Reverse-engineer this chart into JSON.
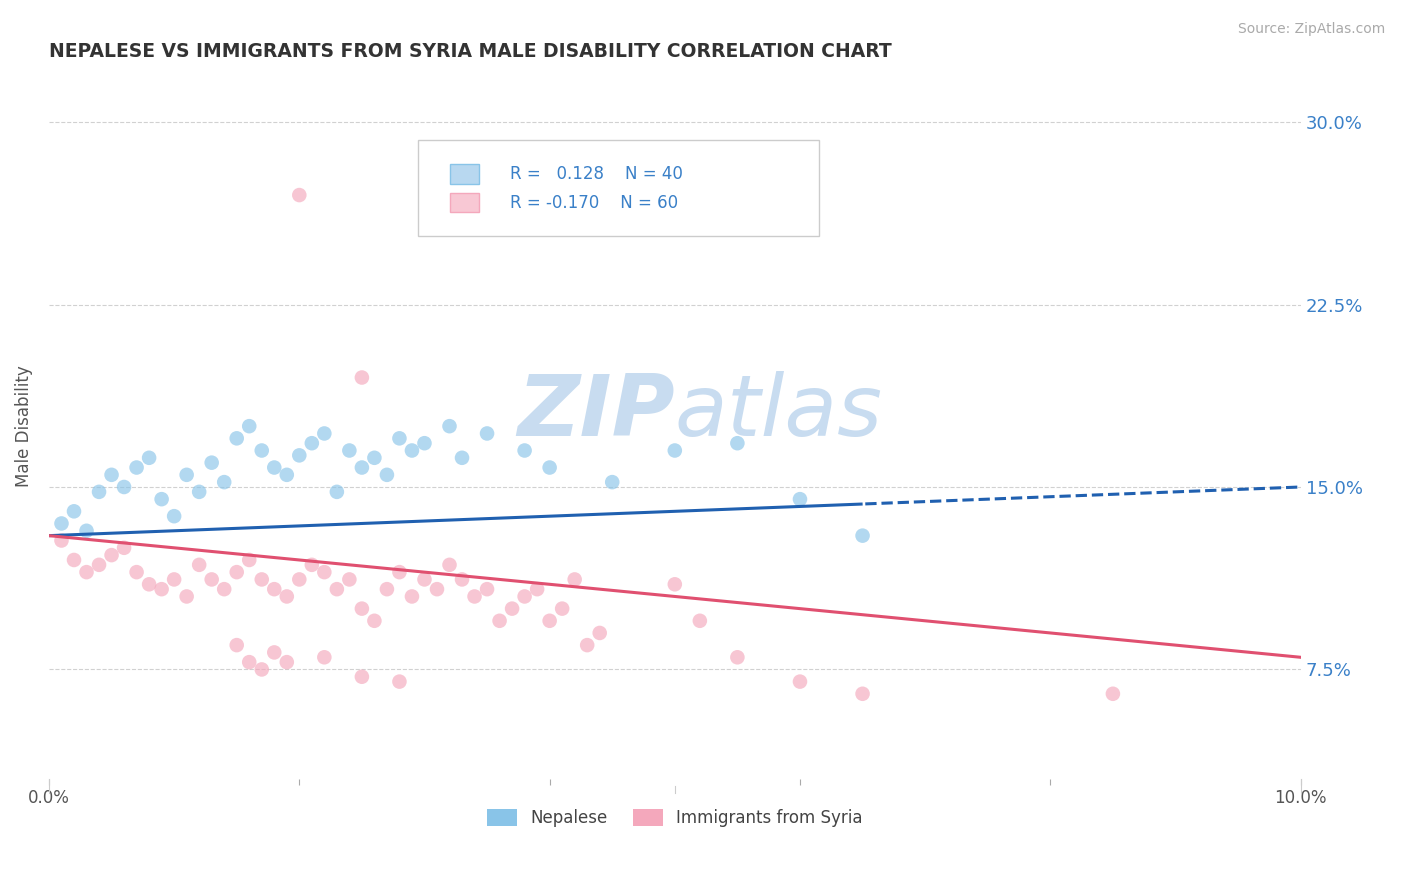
{
  "title": "NEPALESE VS IMMIGRANTS FROM SYRIA MALE DISABILITY CORRELATION CHART",
  "source": "Source: ZipAtlas.com",
  "ylabel": "Male Disability",
  "x_min": 0.0,
  "x_max": 0.1,
  "y_min": 0.03,
  "y_max": 0.32,
  "x_ticks": [
    0.0,
    0.02,
    0.04,
    0.06,
    0.08,
    0.1
  ],
  "x_tick_labels": [
    "0.0%",
    "",
    "",
    "",
    "",
    "10.0%"
  ],
  "y_ticks": [
    0.075,
    0.15,
    0.225,
    0.3
  ],
  "y_tick_labels": [
    "7.5%",
    "15.0%",
    "22.5%",
    "30.0%"
  ],
  "r_nepalese": 0.128,
  "n_nepalese": 40,
  "r_syria": -0.17,
  "n_syria": 60,
  "color_nepalese": "#89C4E8",
  "color_syria": "#F4A8BC",
  "line_color_nepalese": "#2060B0",
  "line_color_syria": "#E05070",
  "scatter_alpha": 0.65,
  "legend_label_1": "Nepalese",
  "legend_label_2": "Immigrants from Syria",
  "watermark_color": "#C8DCF0",
  "background_color": "#FFFFFF",
  "grid_color": "#CCCCCC",
  "nepalese_points": [
    [
      0.001,
      0.135
    ],
    [
      0.002,
      0.14
    ],
    [
      0.003,
      0.132
    ],
    [
      0.004,
      0.148
    ],
    [
      0.005,
      0.155
    ],
    [
      0.006,
      0.15
    ],
    [
      0.007,
      0.158
    ],
    [
      0.008,
      0.162
    ],
    [
      0.009,
      0.145
    ],
    [
      0.01,
      0.138
    ],
    [
      0.011,
      0.155
    ],
    [
      0.012,
      0.148
    ],
    [
      0.013,
      0.16
    ],
    [
      0.014,
      0.152
    ],
    [
      0.015,
      0.17
    ],
    [
      0.016,
      0.175
    ],
    [
      0.017,
      0.165
    ],
    [
      0.018,
      0.158
    ],
    [
      0.019,
      0.155
    ],
    [
      0.02,
      0.163
    ],
    [
      0.021,
      0.168
    ],
    [
      0.022,
      0.172
    ],
    [
      0.023,
      0.148
    ],
    [
      0.024,
      0.165
    ],
    [
      0.025,
      0.158
    ],
    [
      0.026,
      0.162
    ],
    [
      0.027,
      0.155
    ],
    [
      0.028,
      0.17
    ],
    [
      0.029,
      0.165
    ],
    [
      0.03,
      0.168
    ],
    [
      0.032,
      0.175
    ],
    [
      0.033,
      0.162
    ],
    [
      0.035,
      0.172
    ],
    [
      0.038,
      0.165
    ],
    [
      0.04,
      0.158
    ],
    [
      0.045,
      0.152
    ],
    [
      0.05,
      0.165
    ],
    [
      0.055,
      0.168
    ],
    [
      0.06,
      0.145
    ],
    [
      0.065,
      0.13
    ]
  ],
  "syria_points": [
    [
      0.001,
      0.128
    ],
    [
      0.002,
      0.12
    ],
    [
      0.003,
      0.115
    ],
    [
      0.004,
      0.118
    ],
    [
      0.005,
      0.122
    ],
    [
      0.006,
      0.125
    ],
    [
      0.007,
      0.115
    ],
    [
      0.008,
      0.11
    ],
    [
      0.009,
      0.108
    ],
    [
      0.01,
      0.112
    ],
    [
      0.011,
      0.105
    ],
    [
      0.012,
      0.118
    ],
    [
      0.013,
      0.112
    ],
    [
      0.014,
      0.108
    ],
    [
      0.015,
      0.115
    ],
    [
      0.016,
      0.12
    ],
    [
      0.017,
      0.112
    ],
    [
      0.018,
      0.108
    ],
    [
      0.019,
      0.105
    ],
    [
      0.02,
      0.112
    ],
    [
      0.021,
      0.118
    ],
    [
      0.022,
      0.115
    ],
    [
      0.023,
      0.108
    ],
    [
      0.024,
      0.112
    ],
    [
      0.025,
      0.1
    ],
    [
      0.026,
      0.095
    ],
    [
      0.027,
      0.108
    ],
    [
      0.028,
      0.115
    ],
    [
      0.029,
      0.105
    ],
    [
      0.03,
      0.112
    ],
    [
      0.031,
      0.108
    ],
    [
      0.032,
      0.118
    ],
    [
      0.033,
      0.112
    ],
    [
      0.034,
      0.105
    ],
    [
      0.035,
      0.108
    ],
    [
      0.036,
      0.095
    ],
    [
      0.037,
      0.1
    ],
    [
      0.038,
      0.105
    ],
    [
      0.039,
      0.108
    ],
    [
      0.04,
      0.095
    ],
    [
      0.041,
      0.1
    ],
    [
      0.042,
      0.112
    ],
    [
      0.043,
      0.085
    ],
    [
      0.044,
      0.09
    ],
    [
      0.02,
      0.27
    ],
    [
      0.025,
      0.195
    ],
    [
      0.015,
      0.085
    ],
    [
      0.016,
      0.078
    ],
    [
      0.017,
      0.075
    ],
    [
      0.018,
      0.082
    ],
    [
      0.019,
      0.078
    ],
    [
      0.022,
      0.08
    ],
    [
      0.025,
      0.072
    ],
    [
      0.028,
      0.07
    ],
    [
      0.05,
      0.11
    ],
    [
      0.052,
      0.095
    ],
    [
      0.055,
      0.08
    ],
    [
      0.06,
      0.07
    ],
    [
      0.065,
      0.065
    ],
    [
      0.085,
      0.065
    ]
  ]
}
